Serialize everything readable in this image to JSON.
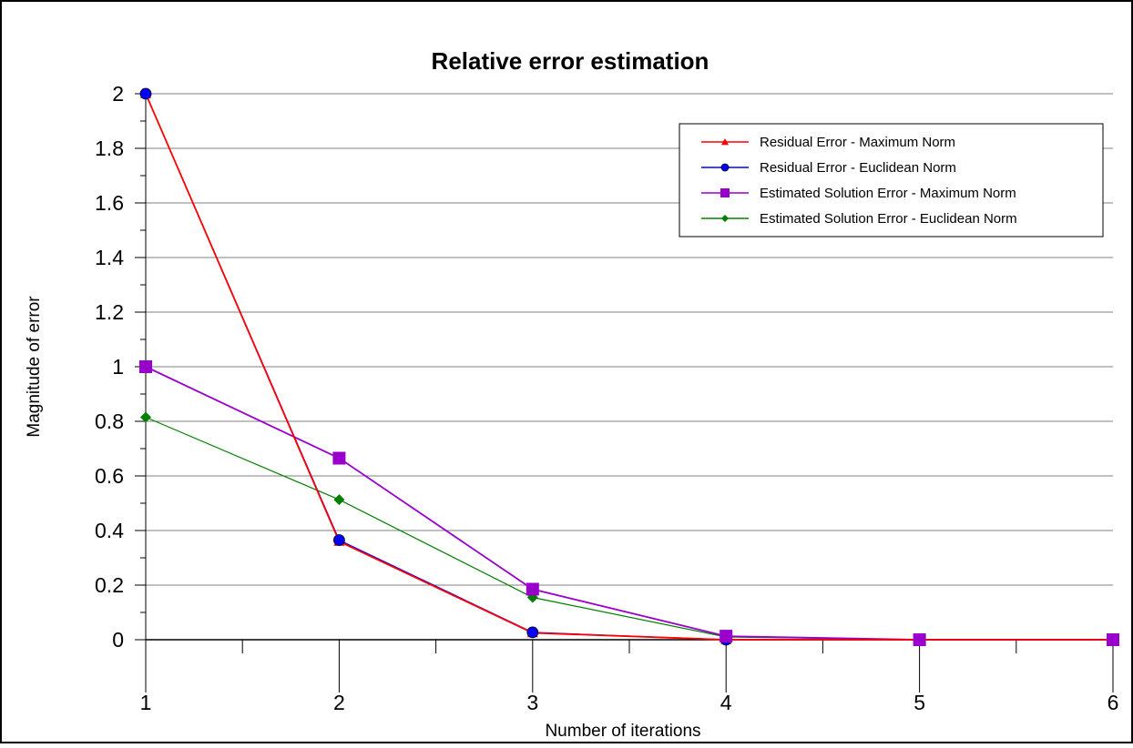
{
  "chart_data": {
    "type": "line",
    "title": "Relative error estimation",
    "xlabel": "Number of iterations",
    "ylabel": "Magnitude of error",
    "x": [
      1,
      2,
      3,
      4,
      5,
      6
    ],
    "xlim": [
      1,
      6
    ],
    "ylim": [
      0,
      2
    ],
    "y_ticks": [
      "0",
      "0.2",
      "0.4",
      "0.6",
      "0.8",
      "1",
      "1.2",
      "1.4",
      "1.6",
      "1.8",
      "2"
    ],
    "x_ticks": [
      "1",
      "2",
      "3",
      "4",
      "5",
      "6"
    ],
    "grid": "horizontal",
    "legend_position": "top-right",
    "series": [
      {
        "name": "Residual Error - Maximum Norm",
        "color": "#ff0000",
        "marker": "triangle",
        "values": [
          2.0,
          0.36,
          0.025,
          0.0,
          0.0,
          0.0
        ]
      },
      {
        "name": "Residual Error - Euclidean Norm",
        "color": "#0000ff",
        "marker": "circle",
        "values": [
          2.0,
          0.365,
          0.027,
          0.0,
          0.0,
          0.0
        ]
      },
      {
        "name": "Estimated Solution Error - Maximum Norm",
        "color": "#9900cc",
        "marker": "square",
        "values": [
          1.0,
          0.665,
          0.185,
          0.013,
          0.0,
          0.0
        ]
      },
      {
        "name": "Estimated Solution Error - Euclidean Norm",
        "color": "#008000",
        "marker": "diamond",
        "values": [
          0.815,
          0.513,
          0.155,
          0.01,
          0.0,
          0.0
        ]
      }
    ]
  }
}
